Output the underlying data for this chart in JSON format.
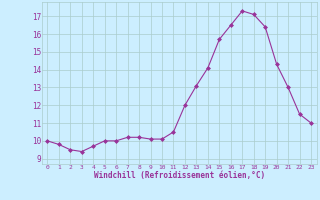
{
  "x": [
    0,
    1,
    2,
    3,
    4,
    5,
    6,
    7,
    8,
    9,
    10,
    11,
    12,
    13,
    14,
    15,
    16,
    17,
    18,
    19,
    20,
    21,
    22,
    23
  ],
  "y": [
    10.0,
    9.8,
    9.5,
    9.4,
    9.7,
    10.0,
    10.0,
    10.2,
    10.2,
    10.1,
    10.1,
    10.5,
    12.0,
    13.1,
    14.1,
    15.7,
    16.5,
    17.3,
    17.1,
    16.4,
    14.3,
    13.0,
    11.5,
    11.0
  ],
  "line_color": "#993399",
  "marker": "D",
  "marker_size": 2,
  "bg_color": "#cceeff",
  "grid_color": "#aacccc",
  "xlabel": "Windchill (Refroidissement éolien,°C)",
  "xlabel_color": "#993399",
  "ylabel_ticks": [
    9,
    10,
    11,
    12,
    13,
    14,
    15,
    16,
    17
  ],
  "ylim": [
    8.7,
    17.8
  ],
  "xlim": [
    -0.5,
    23.5
  ],
  "xtick_labels": [
    "0",
    "1",
    "2",
    "3",
    "4",
    "5",
    "6",
    "7",
    "8",
    "9",
    "10",
    "11",
    "12",
    "13",
    "14",
    "15",
    "16",
    "17",
    "18",
    "19",
    "20",
    "21",
    "22",
    "23"
  ],
  "font_family": "monospace"
}
